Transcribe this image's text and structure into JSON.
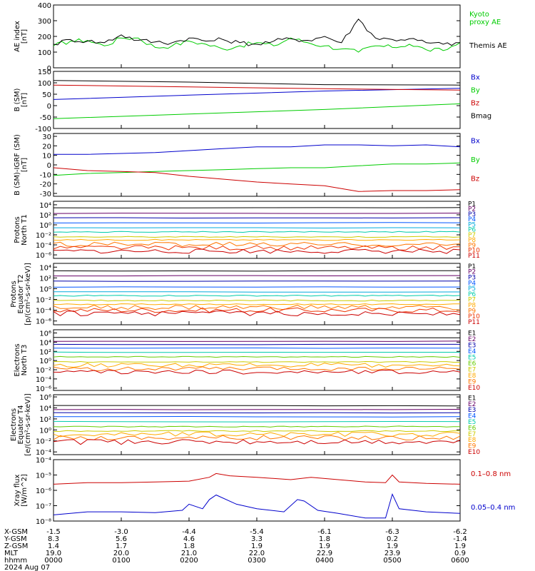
{
  "chart_data": [
    {
      "id": "ae",
      "type": "line",
      "ylabel": [
        "AE index",
        "[nT]"
      ],
      "ylim": [
        0,
        400
      ],
      "log": false,
      "ticks": [
        "0",
        "100",
        "200",
        "300",
        "400"
      ],
      "tick_values": [
        0,
        100,
        200,
        300,
        400
      ],
      "series": [
        {
          "name": "Kyoto proxy AE",
          "legend_lines": [
            "Kyoto",
            "proxy AE"
          ],
          "color": "#00cc00",
          "x": [
            0,
            0.25,
            0.5,
            0.75,
            1.0,
            1.25,
            1.5,
            1.75,
            2.0,
            2.25,
            2.5,
            2.75,
            3.0,
            3.25,
            3.5,
            3.75,
            4.0,
            4.25,
            4.5,
            4.75,
            5.0,
            5.25,
            5.5,
            5.75,
            6.0
          ],
          "y": [
            140,
            170,
            175,
            140,
            190,
            190,
            130,
            140,
            170,
            150,
            120,
            140,
            160,
            140,
            190,
            160,
            140,
            120,
            100,
            140,
            130,
            150,
            115,
            110,
            160
          ]
        },
        {
          "name": "Themis AE",
          "legend_lines": [
            "Themis AE"
          ],
          "color": "#000000",
          "x": [
            0,
            0.25,
            0.5,
            0.75,
            1.0,
            1.25,
            1.5,
            1.75,
            2.0,
            2.25,
            2.5,
            2.75,
            3.0,
            3.25,
            3.5,
            3.75,
            4.0,
            4.25,
            4.5,
            4.75,
            5.0,
            5.25,
            5.5,
            5.75,
            6.0
          ],
          "y": [
            150,
            180,
            170,
            160,
            210,
            175,
            165,
            160,
            190,
            170,
            180,
            160,
            150,
            170,
            185,
            175,
            200,
            160,
            310,
            190,
            180,
            185,
            160,
            150,
            160
          ]
        }
      ]
    },
    {
      "id": "bsm",
      "type": "line",
      "ylabel": [
        "B (SM)",
        "[nT]"
      ],
      "ylim": [
        -100,
        150
      ],
      "log": false,
      "ticks": [
        "-100",
        "-50",
        "0",
        "50",
        "100",
        "150"
      ],
      "tick_values": [
        -100,
        -50,
        0,
        50,
        100,
        150
      ],
      "series": [
        {
          "name": "Bx",
          "color": "#0000cc",
          "x": [
            0,
            2,
            4,
            6
          ],
          "y": [
            27,
            46,
            64,
            76
          ]
        },
        {
          "name": "By",
          "color": "#00cc00",
          "x": [
            0,
            2,
            4,
            6
          ],
          "y": [
            -57,
            -37,
            -17,
            8
          ]
        },
        {
          "name": "Bz",
          "color": "#cc0000",
          "x": [
            0,
            2,
            4,
            6
          ],
          "y": [
            90,
            82,
            74,
            68
          ]
        },
        {
          "name": "Bmag",
          "color": "#000000",
          "x": [
            0,
            2,
            4,
            6
          ],
          "y": [
            110,
            103,
            92,
            90
          ]
        }
      ]
    },
    {
      "id": "digrf",
      "type": "line",
      "ylabel": [
        "B (SM)-IGRF (SM)",
        "[nT]"
      ],
      "ylim": [
        -33,
        33
      ],
      "log": false,
      "ticks": [
        "-30",
        "-20",
        "-10",
        "0",
        "10",
        "20",
        "30"
      ],
      "tick_values": [
        -30,
        -20,
        -10,
        0,
        10,
        20,
        30
      ],
      "series": [
        {
          "name": "Bx",
          "color": "#0000cc",
          "x": [
            0,
            0.5,
            1,
            1.5,
            2,
            2.5,
            3,
            3.5,
            4,
            4.5,
            5,
            5.5,
            6
          ],
          "y": [
            11,
            11,
            12,
            13,
            15,
            17,
            19,
            19,
            21,
            21,
            20,
            21,
            19
          ]
        },
        {
          "name": "By",
          "color": "#00cc00",
          "x": [
            0,
            0.5,
            1,
            1.5,
            2,
            2.5,
            3,
            3.5,
            4,
            4.5,
            5,
            5.5,
            6
          ],
          "y": [
            -11,
            -9,
            -8,
            -7,
            -6,
            -5,
            -4,
            -3,
            -3,
            -1,
            1,
            1,
            2
          ]
        },
        {
          "name": "Bz",
          "color": "#cc0000",
          "x": [
            0,
            0.5,
            1,
            1.5,
            2,
            2.5,
            3,
            3.5,
            4,
            4.5,
            5,
            5.5,
            6
          ],
          "y": [
            -3,
            -6,
            -7,
            -8,
            -12,
            -15,
            -18,
            -20,
            -22,
            -28,
            -27,
            -27,
            -26
          ]
        }
      ]
    },
    {
      "id": "pt1",
      "type": "line",
      "ylabel": [
        "Protons",
        "North T1"
      ],
      "ylim": [
        -6.7,
        4.7
      ],
      "log": true,
      "ticks": [
        "10⁴",
        "10²",
        "10⁰",
        "10⁻²",
        "10⁻⁴",
        "10⁻⁶"
      ],
      "tick_values": [
        4,
        2,
        0,
        -2,
        -4,
        -6
      ],
      "channels": [
        {
          "name": "P1",
          "color": "#000000",
          "level": 3.4
        },
        {
          "name": "P2",
          "color": "#660066",
          "level": 2.3
        },
        {
          "name": "P3",
          "color": "#0000aa",
          "level": 1.4
        },
        {
          "name": "P4",
          "color": "#0055ff",
          "level": 0.4
        },
        {
          "name": "P5",
          "color": "#00aadd",
          "level": -0.6
        },
        {
          "name": "P6",
          "color": "#00ccaa",
          "level": -1.4
        },
        {
          "name": "P7",
          "color": "#cccc00",
          "level": -2.4
        },
        {
          "name": "P8",
          "color": "#ffaa00",
          "level": -3.0
        },
        {
          "name": "P9",
          "color": "#ff7700",
          "level": -3.9
        },
        {
          "name": "P10",
          "color": "#ee3300",
          "level": -4.6
        },
        {
          "name": "P11",
          "color": "#cc0000",
          "level": -5.3
        }
      ]
    },
    {
      "id": "pt2",
      "type": "line",
      "ylabel": [
        "Protons",
        "Equator T2",
        "[p/(cm²-s-sr-keV)]"
      ],
      "ylim": [
        -6.7,
        4.7
      ],
      "log": true,
      "ticks": [
        "10⁴",
        "10²",
        "10⁰",
        "10⁻²",
        "10⁻⁴",
        "10⁻⁶"
      ],
      "tick_values": [
        4,
        2,
        0,
        -2,
        -4,
        -6
      ],
      "channels": [
        {
          "name": "P1",
          "color": "#000000",
          "level": 3.3
        },
        {
          "name": "P2",
          "color": "#660066",
          "level": 2.4
        },
        {
          "name": "P3",
          "color": "#0000aa",
          "level": 1.4
        },
        {
          "name": "P4",
          "color": "#0055ff",
          "level": 0.3
        },
        {
          "name": "P5",
          "color": "#00aadd",
          "level": -0.6
        },
        {
          "name": "P6",
          "color": "#00ccaa",
          "level": -1.3
        },
        {
          "name": "P7",
          "color": "#cccc00",
          "level": -2.2
        },
        {
          "name": "P8",
          "color": "#ffaa00",
          "level": -2.9
        },
        {
          "name": "P9",
          "color": "#ff7700",
          "level": -3.5
        },
        {
          "name": "P10",
          "color": "#ee3300",
          "level": -4.0
        },
        {
          "name": "P11",
          "color": "#cc0000",
          "level": -4.6
        }
      ]
    },
    {
      "id": "et3",
      "type": "line",
      "ylabel": [
        "Electrons",
        "North T3"
      ],
      "ylim": [
        -6.5,
        6.7
      ],
      "log": true,
      "ticks": [
        "10⁶",
        "10⁴",
        "10²",
        "10⁰",
        "10⁻²",
        "10⁻⁴",
        "10⁻⁶"
      ],
      "tick_values": [
        6,
        4,
        2,
        0,
        -2,
        -4,
        -6
      ],
      "channels": [
        {
          "name": "E1",
          "color": "#000000",
          "level": 5.0
        },
        {
          "name": "E2",
          "color": "#660066",
          "level": 4.2
        },
        {
          "name": "E3",
          "color": "#0000aa",
          "level": 3.5
        },
        {
          "name": "E4",
          "color": "#0055ff",
          "level": 2.7
        },
        {
          "name": "E5",
          "color": "#00ccaa",
          "level": 1.8
        },
        {
          "name": "E6",
          "color": "#66cc00",
          "level": 0.8
        },
        {
          "name": "E7",
          "color": "#cccc00",
          "level": -0.3
        },
        {
          "name": "E8",
          "color": "#ffaa00",
          "level": -1.0
        },
        {
          "name": "E9",
          "color": "#ff7700",
          "level": -1.8
        },
        {
          "name": "E10",
          "color": "#cc0000",
          "level": -2.5
        }
      ]
    },
    {
      "id": "et4",
      "type": "line",
      "ylabel": [
        "Electrons",
        "Equator T4",
        "[e/(cm²-s-sr-keV)]"
      ],
      "ylim": [
        -4.5,
        6.4
      ],
      "log": true,
      "ticks": [
        "10⁶",
        "10⁴",
        "10²",
        "10⁰",
        "10⁻²",
        "10⁻⁴"
      ],
      "tick_values": [
        6,
        4,
        2,
        0,
        -2,
        -4
      ],
      "channels": [
        {
          "name": "E1",
          "color": "#000000",
          "level": 4.4
        },
        {
          "name": "E2",
          "color": "#660066",
          "level": 3.7
        },
        {
          "name": "E3",
          "color": "#0000aa",
          "level": 3.1
        },
        {
          "name": "E4",
          "color": "#0055ff",
          "level": 2.4
        },
        {
          "name": "E5",
          "color": "#00ccaa",
          "level": 1.5
        },
        {
          "name": "E6",
          "color": "#66cc00",
          "level": 0.6
        },
        {
          "name": "E7",
          "color": "#cccc00",
          "level": -0.2
        },
        {
          "name": "E8",
          "color": "#ffaa00",
          "level": -0.8
        },
        {
          "name": "E9",
          "color": "#ff7700",
          "level": -1.4
        },
        {
          "name": "E10",
          "color": "#cc0000",
          "level": -2.2
        }
      ]
    },
    {
      "id": "xray",
      "type": "line",
      "ylabel": [
        "Xray flux",
        "[W/m^2]"
      ],
      "ylim": [
        -8,
        -4
      ],
      "log": true,
      "ticks": [
        "10⁻⁴",
        "10⁻⁵",
        "10⁻⁶",
        "10⁻⁷",
        "10⁻⁸"
      ],
      "tick_values": [
        -4,
        -5,
        -6,
        -7,
        -8
      ],
      "series": [
        {
          "name": "0.1–0.8 nm",
          "color": "#cc0000",
          "x": [
            0,
            0.5,
            1.0,
            1.5,
            2.0,
            2.3,
            2.4,
            2.6,
            3.0,
            3.5,
            3.8,
            4.2,
            4.6,
            4.9,
            5.0,
            5.1,
            5.5,
            6.0
          ],
          "y": [
            -5.6,
            -5.5,
            -5.5,
            -5.45,
            -5.4,
            -5.15,
            -4.9,
            -5.05,
            -5.15,
            -5.3,
            -5.15,
            -5.3,
            -5.45,
            -5.5,
            -5.0,
            -5.45,
            -5.55,
            -5.6
          ]
        },
        {
          "name": "0.05–0.4 nm",
          "color": "#0000cc",
          "x": [
            0,
            0.5,
            1.0,
            1.5,
            1.9,
            2.0,
            2.2,
            2.3,
            2.4,
            2.7,
            3.0,
            3.4,
            3.6,
            3.7,
            3.9,
            4.2,
            4.6,
            4.9,
            5.0,
            5.1,
            5.5,
            6.0
          ],
          "y": [
            -7.6,
            -7.4,
            -7.4,
            -7.45,
            -7.3,
            -6.9,
            -7.2,
            -6.6,
            -6.3,
            -6.9,
            -7.2,
            -7.4,
            -6.6,
            -6.7,
            -7.3,
            -7.5,
            -7.8,
            -7.8,
            -6.25,
            -7.2,
            -7.4,
            -7.5
          ]
        }
      ]
    }
  ],
  "x_axis": {
    "rows": [
      {
        "label": "X-GSM",
        "values": [
          "-1.5",
          "-3.0",
          "-4.4",
          "-5.4",
          "-6.1",
          "-6.3",
          "-6.2"
        ]
      },
      {
        "label": "Y-GSM",
        "values": [
          "8.3",
          "5.6",
          "4.6",
          "3.3",
          "1.8",
          "0.2",
          "-1.4"
        ]
      },
      {
        "label": "Z-GSM",
        "values": [
          "1.4",
          "1.7",
          "1.8",
          "1.9",
          "1.9",
          "1.9",
          "1.9"
        ]
      },
      {
        "label": "MLT",
        "values": [
          "19.0",
          "20.0",
          "21.0",
          "22.0",
          "22.9",
          "23.9",
          "0.9"
        ]
      },
      {
        "label": "hhmm",
        "values": [
          "0000",
          "0100",
          "0200",
          "0300",
          "0400",
          "0500",
          "0600"
        ]
      }
    ],
    "date": "2024 Aug 07"
  }
}
